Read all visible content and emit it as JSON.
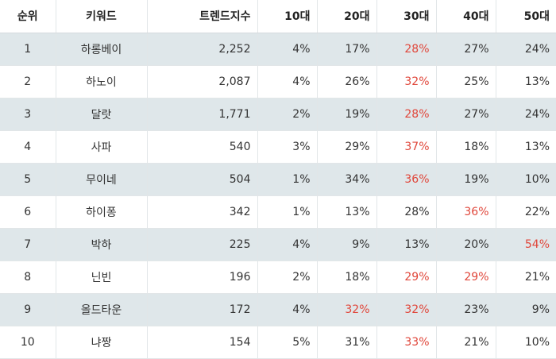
{
  "table": {
    "headers": [
      "순위",
      "키워드",
      "트렌드지수",
      "10대",
      "20대",
      "30대",
      "40대",
      "50대"
    ],
    "highlight_color": "#e0463a",
    "rows": [
      {
        "rank": "1",
        "keyword": "하롱베이",
        "index": "2,252",
        "age10": "4%",
        "age20": "17%",
        "age30": "28%",
        "age40": "27%",
        "age50": "24%",
        "max_col": "age30"
      },
      {
        "rank": "2",
        "keyword": "하노이",
        "index": "2,087",
        "age10": "4%",
        "age20": "26%",
        "age30": "32%",
        "age40": "25%",
        "age50": "13%",
        "max_col": "age30"
      },
      {
        "rank": "3",
        "keyword": "달랏",
        "index": "1,771",
        "age10": "2%",
        "age20": "19%",
        "age30": "28%",
        "age40": "27%",
        "age50": "24%",
        "max_col": "age30"
      },
      {
        "rank": "4",
        "keyword": "사파",
        "index": "540",
        "age10": "3%",
        "age20": "29%",
        "age30": "37%",
        "age40": "18%",
        "age50": "13%",
        "max_col": "age30"
      },
      {
        "rank": "5",
        "keyword": "무이네",
        "index": "504",
        "age10": "1%",
        "age20": "34%",
        "age30": "36%",
        "age40": "19%",
        "age50": "10%",
        "max_col": "age30"
      },
      {
        "rank": "6",
        "keyword": "하이퐁",
        "index": "342",
        "age10": "1%",
        "age20": "13%",
        "age30": "28%",
        "age40": "36%",
        "age50": "22%",
        "max_col": "age40"
      },
      {
        "rank": "7",
        "keyword": "박하",
        "index": "225",
        "age10": "4%",
        "age20": "9%",
        "age30": "13%",
        "age40": "20%",
        "age50": "54%",
        "max_col": "age50"
      },
      {
        "rank": "8",
        "keyword": "닌빈",
        "index": "196",
        "age10": "2%",
        "age20": "18%",
        "age30": "29%",
        "age40": "29%",
        "age50": "21%",
        "max_col": "age30,age40"
      },
      {
        "rank": "9",
        "keyword": "올드타운",
        "index": "172",
        "age10": "4%",
        "age20": "32%",
        "age30": "32%",
        "age40": "23%",
        "age50": "9%",
        "max_col": "age20,age30"
      },
      {
        "rank": "10",
        "keyword": "냐짱",
        "index": "154",
        "age10": "5%",
        "age20": "31%",
        "age30": "33%",
        "age40": "21%",
        "age50": "10%",
        "max_col": "age30"
      }
    ]
  }
}
